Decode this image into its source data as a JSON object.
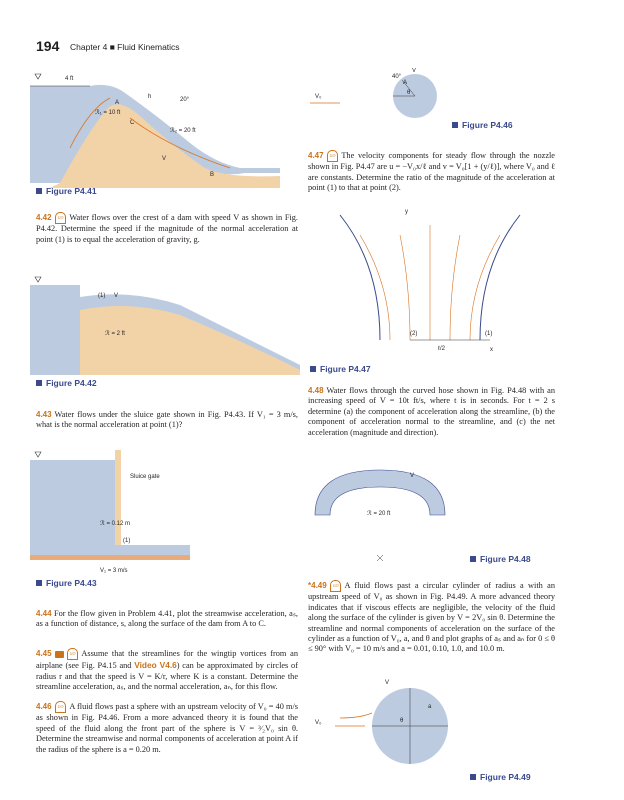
{
  "header": {
    "page_number": "194",
    "chapter": "Chapter 4 ■ Fluid Kinematics"
  },
  "figures": {
    "p441": {
      "label": "Figure P4.41",
      "w": "4 ft",
      "h": "h",
      "angle": "20°",
      "r1": "ℛ₁ = 10 ft",
      "r2": "ℛ₂ = 20 ft",
      "A": "A",
      "B": "B",
      "C": "C",
      "V": "V"
    },
    "p446": {
      "label": "Figure P4.46",
      "V0": "V₀",
      "angle": "40°",
      "A": "A",
      "theta": "θ",
      "V": "V"
    },
    "p447": {
      "label": "Figure P4.47",
      "y": "y",
      "x": "x",
      "p1": "(1)",
      "p2": "(2)",
      "half": "ℓ/2"
    },
    "p442": {
      "label": "Figure P4.42",
      "p1": "(1)",
      "V": "V",
      "r": "ℛ = 2 ft"
    },
    "p443": {
      "label": "Figure P4.43",
      "gate": "Sluice gate",
      "r": "ℛ = 0.12 m",
      "p1": "(1)",
      "v1": "V₁ = 3 m/s"
    },
    "p448": {
      "label": "Figure P4.48",
      "V": "V",
      "r": "ℛ = 20 ft"
    },
    "p449": {
      "label": "Figure P4.49",
      "V0": "V₀",
      "V": "V",
      "a": "a",
      "theta": "θ"
    }
  },
  "problems": {
    "p442": {
      "num": "4.42",
      "badge": "GO",
      "text": "Water flows over the crest of a dam with speed V as shown in Fig. P4.42. Determine the speed if the magnitude of the normal acceleration at point (1) is to equal the acceleration of gravity, g."
    },
    "p443": {
      "num": "4.43",
      "text": "Water flows under the sluice gate shown in Fig. P4.43. If V₁ = 3 m/s, what is the normal acceleration at point (1)?"
    },
    "p444": {
      "num": "4.44",
      "text": "For the flow given in Problem 4.41, plot the streamwise acceleration, aₛ, as a function of distance, s, along the surface of the dam from A to C."
    },
    "p445": {
      "num": "4.45",
      "badge": "GO",
      "text1": "Assume that the streamlines for the wingtip vortices from an airplane (see Fig. P4.15 and",
      "video": "Video V4.6",
      "text2": ") can be approximated by circles of radius r and that the speed is V = K/r, where K is a constant. Determine the streamline acceleration, aₛ, and the normal acceleration, aₙ, for this flow."
    },
    "p446": {
      "num": "4.46",
      "badge": "GO",
      "text": "A fluid flows past a sphere with an upstream velocity of V₀ = 40 m/s as shown in Fig. P4.46. From a more advanced theory it is found that the speed of the fluid along the front part of the sphere is V = ³⁄₂V₀ sin θ. Determine the streamwise and normal components of acceleration at point A if the radius of the sphere is a = 0.20 m."
    },
    "p447": {
      "num": "4.47",
      "badge": "GO",
      "text": "The velocity components for steady flow through the nozzle shown in Fig. P4.47 are u = −V₀x/ℓ and v = V₀[1 + (y/ℓ)], where V₀ and ℓ are constants. Determine the ratio of the magnitude of the acceleration at point (1) to that at point (2)."
    },
    "p448": {
      "num": "4.48",
      "text": "Water flows through the curved hose shown in Fig. P4.48 with an increasing speed of V = 10t ft/s, where t is in seconds. For t = 2 s determine (a) the component of acceleration along the streamline, (b) the component of acceleration normal to the streamline, and (c) the net acceleration (magnitude and direction)."
    },
    "p449": {
      "num": "*4.49",
      "badge": "GO",
      "text": "A fluid flows past a circular cylinder of radius a with an upstream speed of V₀ as shown in Fig. P4.49. A more advanced theory indicates that if viscous effects are negligible, the velocity of the fluid along the surface of the cylinder is given by V = 2V₀ sin θ. Determine the streamline and normal components of acceleration on the surface of the cylinder as a function of V₀, a, and θ and plot graphs of aₛ and aₙ for 0 ≤ θ ≤ 90° with V₀ = 10 m/s and a = 0.01, 0.10, 1.0, and 10.0 m."
    }
  },
  "colors": {
    "water": "#bccbe0",
    "dam": "#f2d3a8",
    "accent": "#c8741a",
    "label": "#3a4a8c",
    "arrow": "#d9731f"
  }
}
